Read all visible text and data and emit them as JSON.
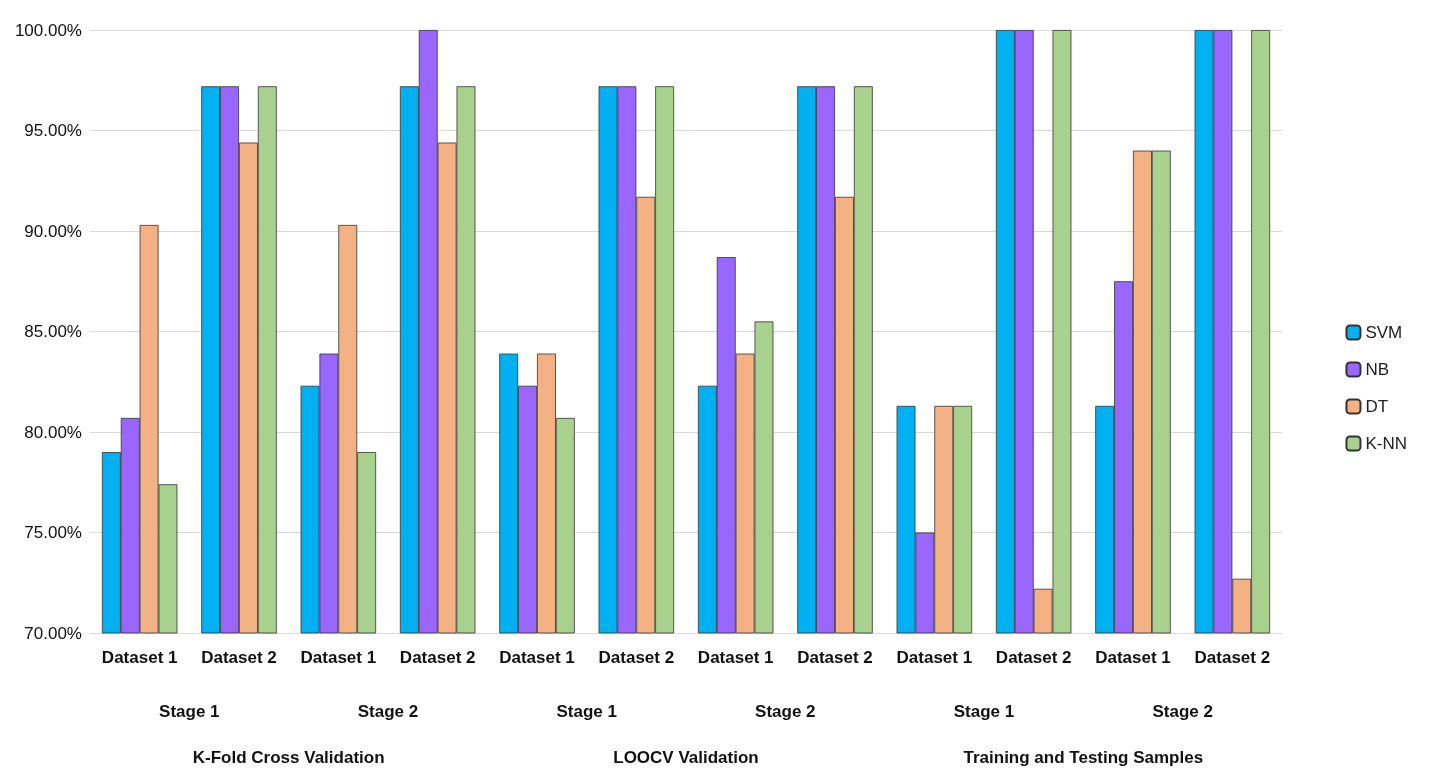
{
  "chart_data": {
    "type": "bar",
    "categories": [
      "Dataset 1",
      "Dataset 2",
      "Dataset 1",
      "Dataset 2",
      "Dataset 1",
      "Dataset 2",
      "Dataset 1",
      "Dataset 2",
      "Dataset 1",
      "Dataset 2",
      "Dataset 1",
      "Dataset 2"
    ],
    "series": [
      {
        "name": "SVM",
        "color": "#00b0f0",
        "values": [
          79.0,
          97.2,
          82.3,
          97.2,
          83.9,
          97.2,
          82.3,
          97.2,
          81.3,
          100,
          81.3,
          100
        ]
      },
      {
        "name": "NB",
        "color": "#9966ff",
        "values": [
          80.7,
          97.2,
          83.9,
          100,
          82.3,
          97.2,
          88.7,
          97.2,
          75.0,
          100,
          87.5,
          100
        ]
      },
      {
        "name": "DT",
        "color": "#f4b183",
        "values": [
          90.3,
          94.4,
          90.3,
          94.4,
          83.9,
          91.7,
          83.9,
          91.7,
          81.3,
          72.2,
          94.0,
          72.7
        ]
      },
      {
        "name": "K-NN",
        "color": "#a9d18e",
        "values": [
          77.4,
          97.2,
          79.0,
          97.2,
          80.7,
          97.2,
          85.5,
          97.2,
          81.3,
          100,
          94.0,
          100
        ]
      }
    ],
    "ylim": [
      70,
      100
    ],
    "yticks": [
      {
        "value": 70,
        "label": "70.00%"
      },
      {
        "value": 75,
        "label": "75.00%"
      },
      {
        "value": 80,
        "label": "80.00%"
      },
      {
        "value": 85,
        "label": "85.00%"
      },
      {
        "value": 90,
        "label": "90.00%"
      },
      {
        "value": 95,
        "label": "95.00%"
      },
      {
        "value": 100,
        "label": "100.00%"
      }
    ],
    "grid": "y",
    "legend": "right",
    "annotations": [
      "Stage 1",
      "Stage 2",
      "Stage 1",
      "Stage 2",
      "Stage 1",
      "Stage 2",
      "K-Fold Cross Validation",
      "LOOCV Validation",
      "Training and Testing Samples"
    ]
  }
}
